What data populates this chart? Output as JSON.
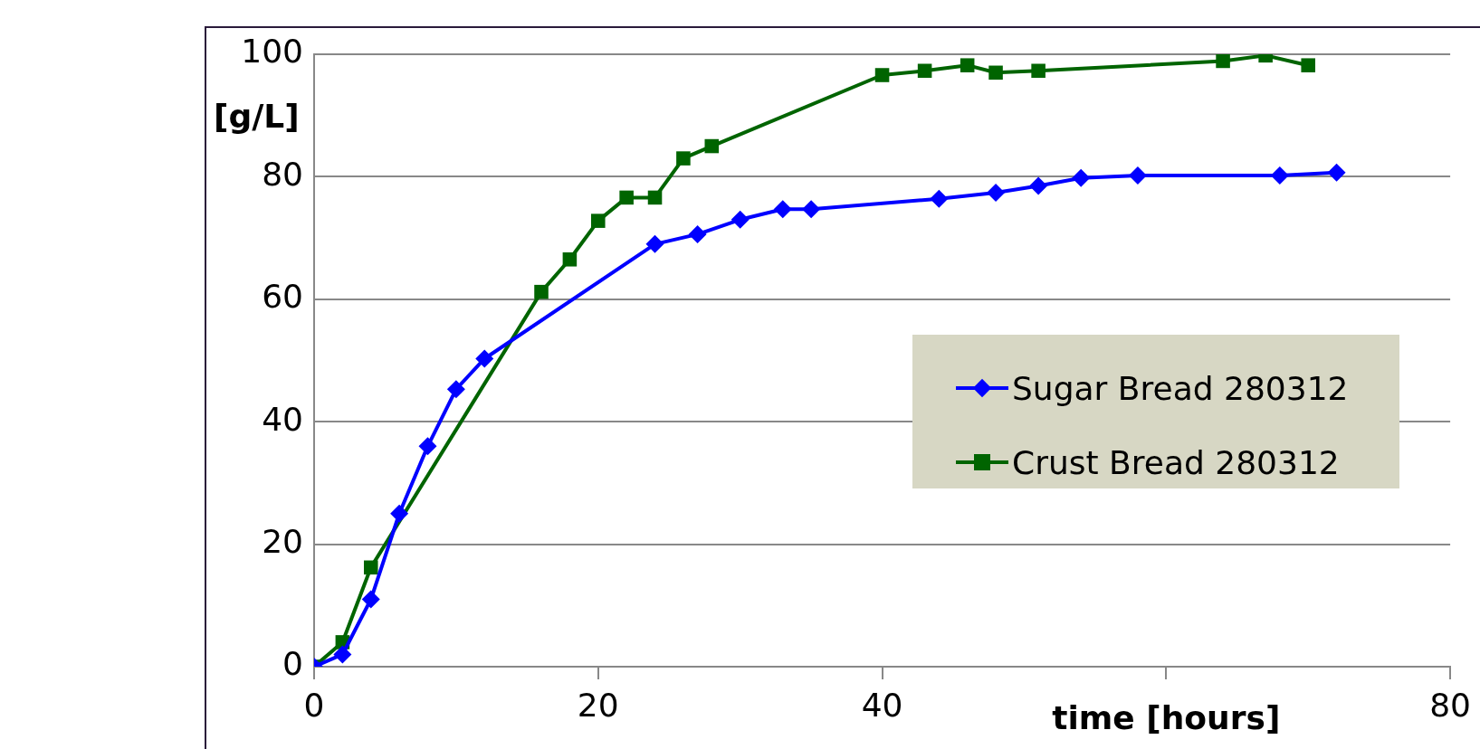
{
  "chart_data": {
    "type": "line",
    "xlabel": "time [hours]",
    "ylabel": "[g/L]",
    "xlim": [
      0,
      80
    ],
    "xticks": [
      0,
      20,
      40,
      {
        "value": 60,
        "label": null
      },
      80
    ],
    "ylim": [
      0,
      100
    ],
    "yticks": [
      0,
      20,
      40,
      60,
      80,
      100
    ],
    "grid": "y",
    "legend": "right",
    "line_style": "solid",
    "series": [
      {
        "name": "Sugar Bread 280312",
        "color": "#0000ff",
        "marker": "diamond",
        "x": [
          0,
          2,
          4,
          6,
          8,
          10,
          12,
          24,
          27,
          30,
          33,
          35,
          44,
          48,
          51,
          54,
          58,
          68,
          72
        ],
        "values": [
          0,
          2,
          11,
          25,
          36,
          45.3,
          50.3,
          69,
          70.6,
          73,
          74.7,
          74.7,
          76.4,
          77.4,
          78.5,
          79.8,
          80.2,
          80.2,
          80.7
        ]
      },
      {
        "name": "Crust Bread 280312",
        "color": "#006400",
        "marker": "square",
        "x": [
          0,
          2,
          4,
          16,
          18,
          20,
          22,
          24,
          26,
          28,
          40,
          43,
          46,
          48,
          51,
          64,
          67,
          70
        ],
        "values": [
          0,
          4,
          16.2,
          61.2,
          66.5,
          72.8,
          76.6,
          76.6,
          83,
          85,
          96.6,
          97.3,
          98.2,
          97,
          97.3,
          98.9,
          99.8,
          98.2
        ]
      }
    ]
  }
}
